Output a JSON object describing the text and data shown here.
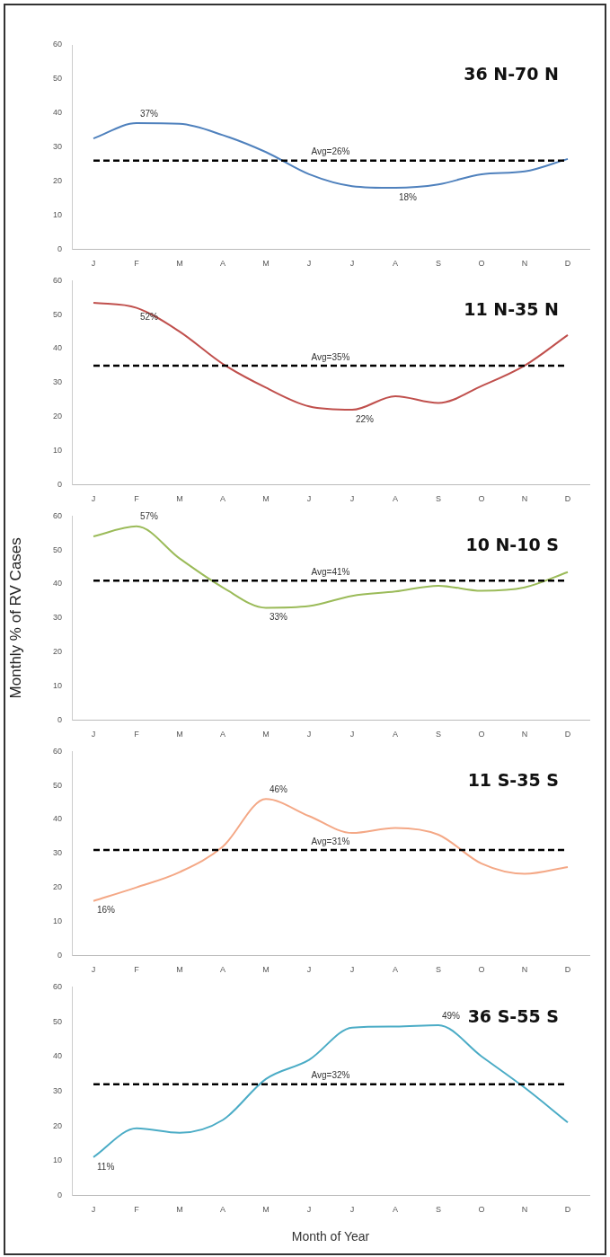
{
  "chart_data": [
    {
      "type": "line",
      "title": "36 N-70 N",
      "categories": [
        "J",
        "F",
        "M",
        "A",
        "M",
        "J",
        "J",
        "A",
        "S",
        "O",
        "N",
        "D"
      ],
      "color": "#4f81bd",
      "marker": "none",
      "line_style": "solid",
      "values": [
        32.5,
        37,
        36.8,
        33.5,
        28.5,
        22,
        18.5,
        18,
        19,
        22,
        22.8,
        26.5
      ],
      "value_labels": [
        null,
        "37%",
        null,
        null,
        null,
        null,
        null,
        "18%",
        null,
        null,
        null,
        null
      ],
      "ylim": [
        0,
        60
      ],
      "yticks": [
        0,
        10,
        20,
        30,
        40,
        50,
        60
      ],
      "grid": false,
      "legend": false,
      "ref_lines": [
        {
          "axis": "y",
          "value": 26,
          "label": "Avg=26%",
          "color": "#000000",
          "line_style": "dashed"
        }
      ]
    },
    {
      "type": "line",
      "title": "11 N-35 N",
      "categories": [
        "J",
        "F",
        "M",
        "A",
        "M",
        "J",
        "J",
        "A",
        "S",
        "O",
        "N",
        "D"
      ],
      "color": "#c0504d",
      "marker": "none",
      "line_style": "solid",
      "values": [
        53.5,
        52,
        45,
        35.5,
        28.5,
        23,
        22,
        26,
        24,
        29,
        35,
        44
      ],
      "value_labels": [
        null,
        "52%",
        null,
        null,
        null,
        null,
        "22%",
        null,
        null,
        null,
        null,
        null
      ],
      "ylim": [
        0,
        60
      ],
      "yticks": [
        0,
        10,
        20,
        30,
        40,
        50,
        60
      ],
      "grid": false,
      "legend": false,
      "ref_lines": [
        {
          "axis": "y",
          "value": 35,
          "label": "Avg=35%",
          "color": "#000000",
          "line_style": "dashed"
        }
      ]
    },
    {
      "type": "line",
      "title": "10 N-10 S",
      "ylabel": "Monthly % of RV Cases",
      "categories": [
        "J",
        "F",
        "M",
        "A",
        "M",
        "J",
        "J",
        "A",
        "S",
        "O",
        "N",
        "D"
      ],
      "color": "#9bbb59",
      "marker": "none",
      "line_style": "solid",
      "values": [
        54,
        57,
        47.5,
        39,
        33,
        33.5,
        36.5,
        37.8,
        39.5,
        38,
        39,
        43.5
      ],
      "value_labels": [
        null,
        "57%",
        null,
        null,
        "33%",
        null,
        null,
        null,
        null,
        null,
        null,
        null
      ],
      "ylim": [
        0,
        60
      ],
      "yticks": [
        0,
        10,
        20,
        30,
        40,
        50,
        60
      ],
      "grid": false,
      "legend": false,
      "ref_lines": [
        {
          "axis": "y",
          "value": 41,
          "label": "Avg=41%",
          "color": "#000000",
          "line_style": "dashed"
        }
      ]
    },
    {
      "type": "line",
      "title": "11 S-35 S",
      "categories": [
        "J",
        "F",
        "M",
        "A",
        "M",
        "J",
        "J",
        "A",
        "S",
        "O",
        "N",
        "D"
      ],
      "color": "#f4a886",
      "marker": "none",
      "line_style": "solid",
      "values": [
        16,
        20,
        24.5,
        32,
        46,
        41,
        36,
        37.5,
        35.5,
        27,
        24,
        26
      ],
      "value_labels": [
        "16%",
        null,
        null,
        null,
        "46%",
        null,
        null,
        null,
        null,
        null,
        null,
        null
      ],
      "ylim": [
        0,
        60
      ],
      "yticks": [
        0,
        10,
        20,
        30,
        40,
        50,
        60
      ],
      "grid": false,
      "legend": false,
      "ref_lines": [
        {
          "axis": "y",
          "value": 31,
          "label": "Avg=31%",
          "color": "#000000",
          "line_style": "dashed"
        }
      ]
    },
    {
      "type": "line",
      "title": "36 S-55 S",
      "xlabel": "Month of Year",
      "categories": [
        "J",
        "F",
        "M",
        "A",
        "M",
        "J",
        "J",
        "A",
        "S",
        "O",
        "N",
        "D"
      ],
      "color": "#4bacc6",
      "marker": "none",
      "line_style": "solid",
      "values": [
        11,
        19.3,
        18,
        21.7,
        33.5,
        39,
        48.3,
        48.6,
        49,
        40,
        31,
        21
      ],
      "value_labels": [
        "11%",
        null,
        null,
        null,
        null,
        null,
        null,
        null,
        "49%",
        null,
        null,
        null
      ],
      "ylim": [
        0,
        60
      ],
      "yticks": [
        0,
        10,
        20,
        30,
        40,
        50,
        60
      ],
      "grid": false,
      "legend": false,
      "ref_lines": [
        {
          "axis": "y",
          "value": 32,
          "label": "Avg=32%",
          "color": "#000000",
          "line_style": "dashed"
        }
      ]
    }
  ]
}
